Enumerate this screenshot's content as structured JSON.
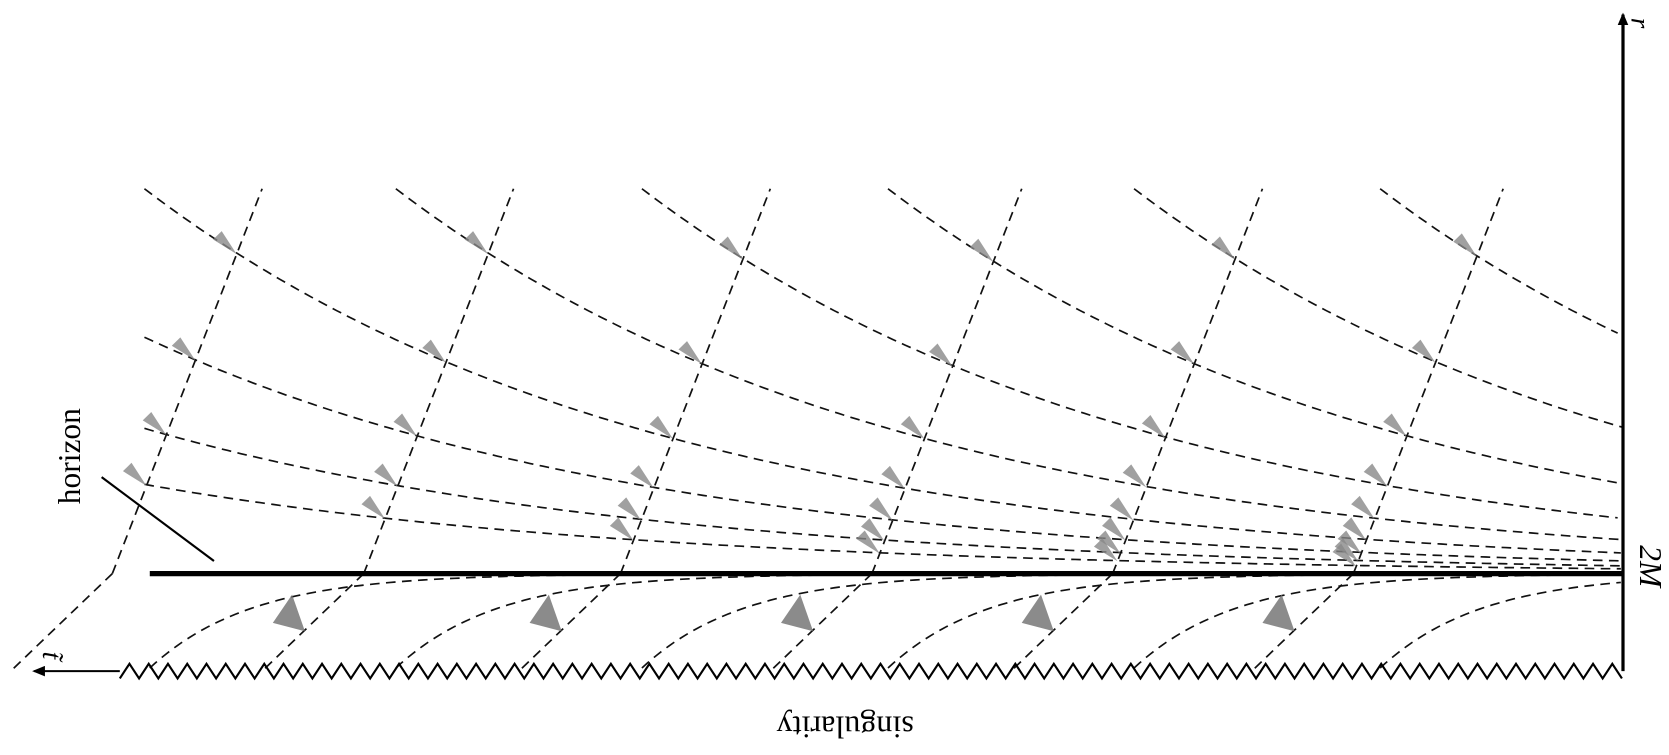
{
  "labels": {
    "r_axis": "r",
    "t_axis": "t̃",
    "two_m": "2M",
    "horizon": "horizon",
    "singularity": "singularity"
  }
}
